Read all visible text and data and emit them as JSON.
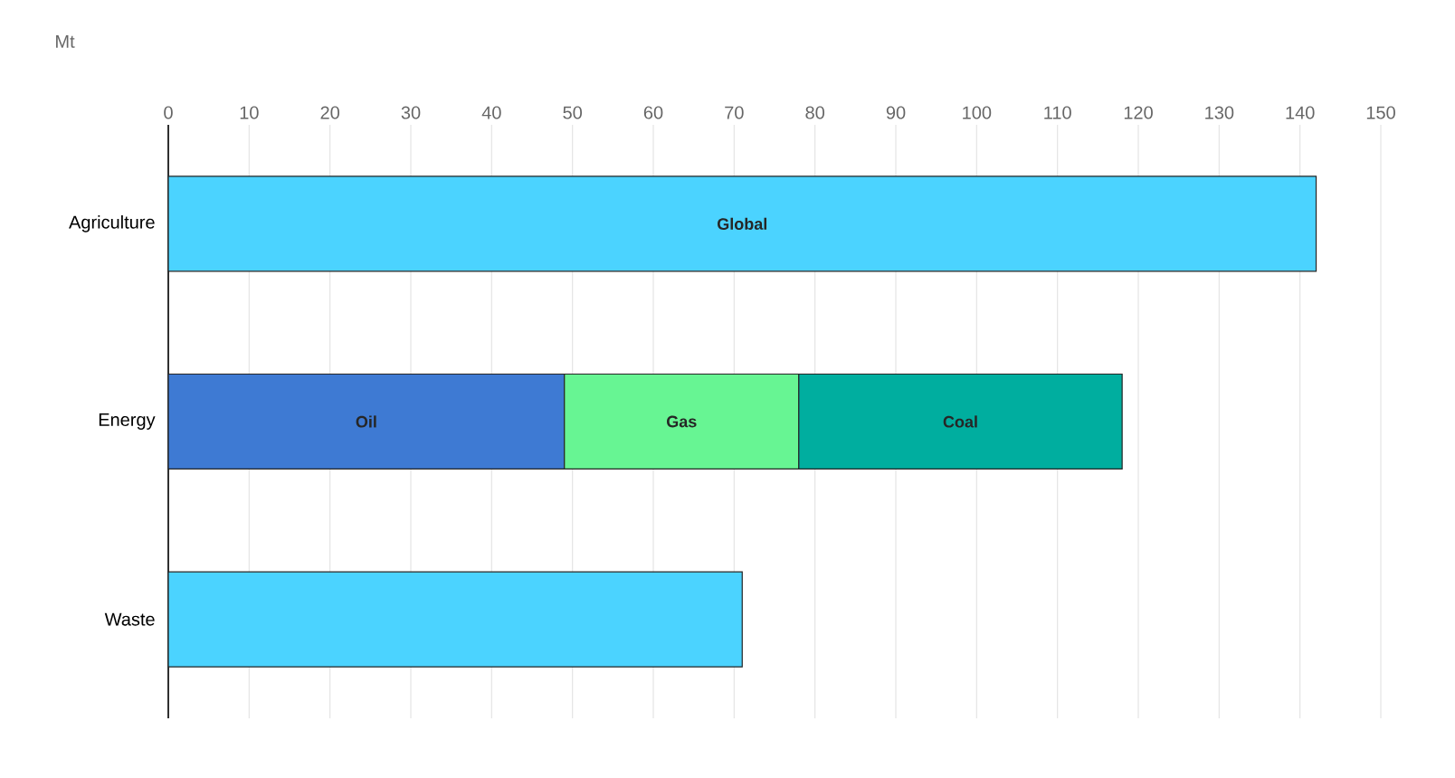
{
  "chart_data": {
    "type": "bar",
    "orientation": "horizontal",
    "stacked": true,
    "xlabel": "Mt",
    "categories": [
      "Agriculture",
      "Energy",
      "Waste"
    ],
    "series": [
      {
        "name": "Global",
        "color": "#4bd3ff",
        "values": [
          142,
          null,
          71
        ]
      },
      {
        "name": "Oil",
        "color": "#3e7ad3",
        "values": [
          null,
          49,
          null
        ]
      },
      {
        "name": "Gas",
        "color": "#67f593",
        "values": [
          null,
          29,
          null
        ]
      },
      {
        "name": "Coal",
        "color": "#00ae9f",
        "values": [
          null,
          40,
          null
        ]
      }
    ],
    "xlim": [
      0,
      150
    ],
    "xticks": [
      0,
      10,
      20,
      30,
      40,
      50,
      60,
      70,
      80,
      90,
      100,
      110,
      120,
      130,
      140,
      150
    ],
    "grid": "x"
  }
}
